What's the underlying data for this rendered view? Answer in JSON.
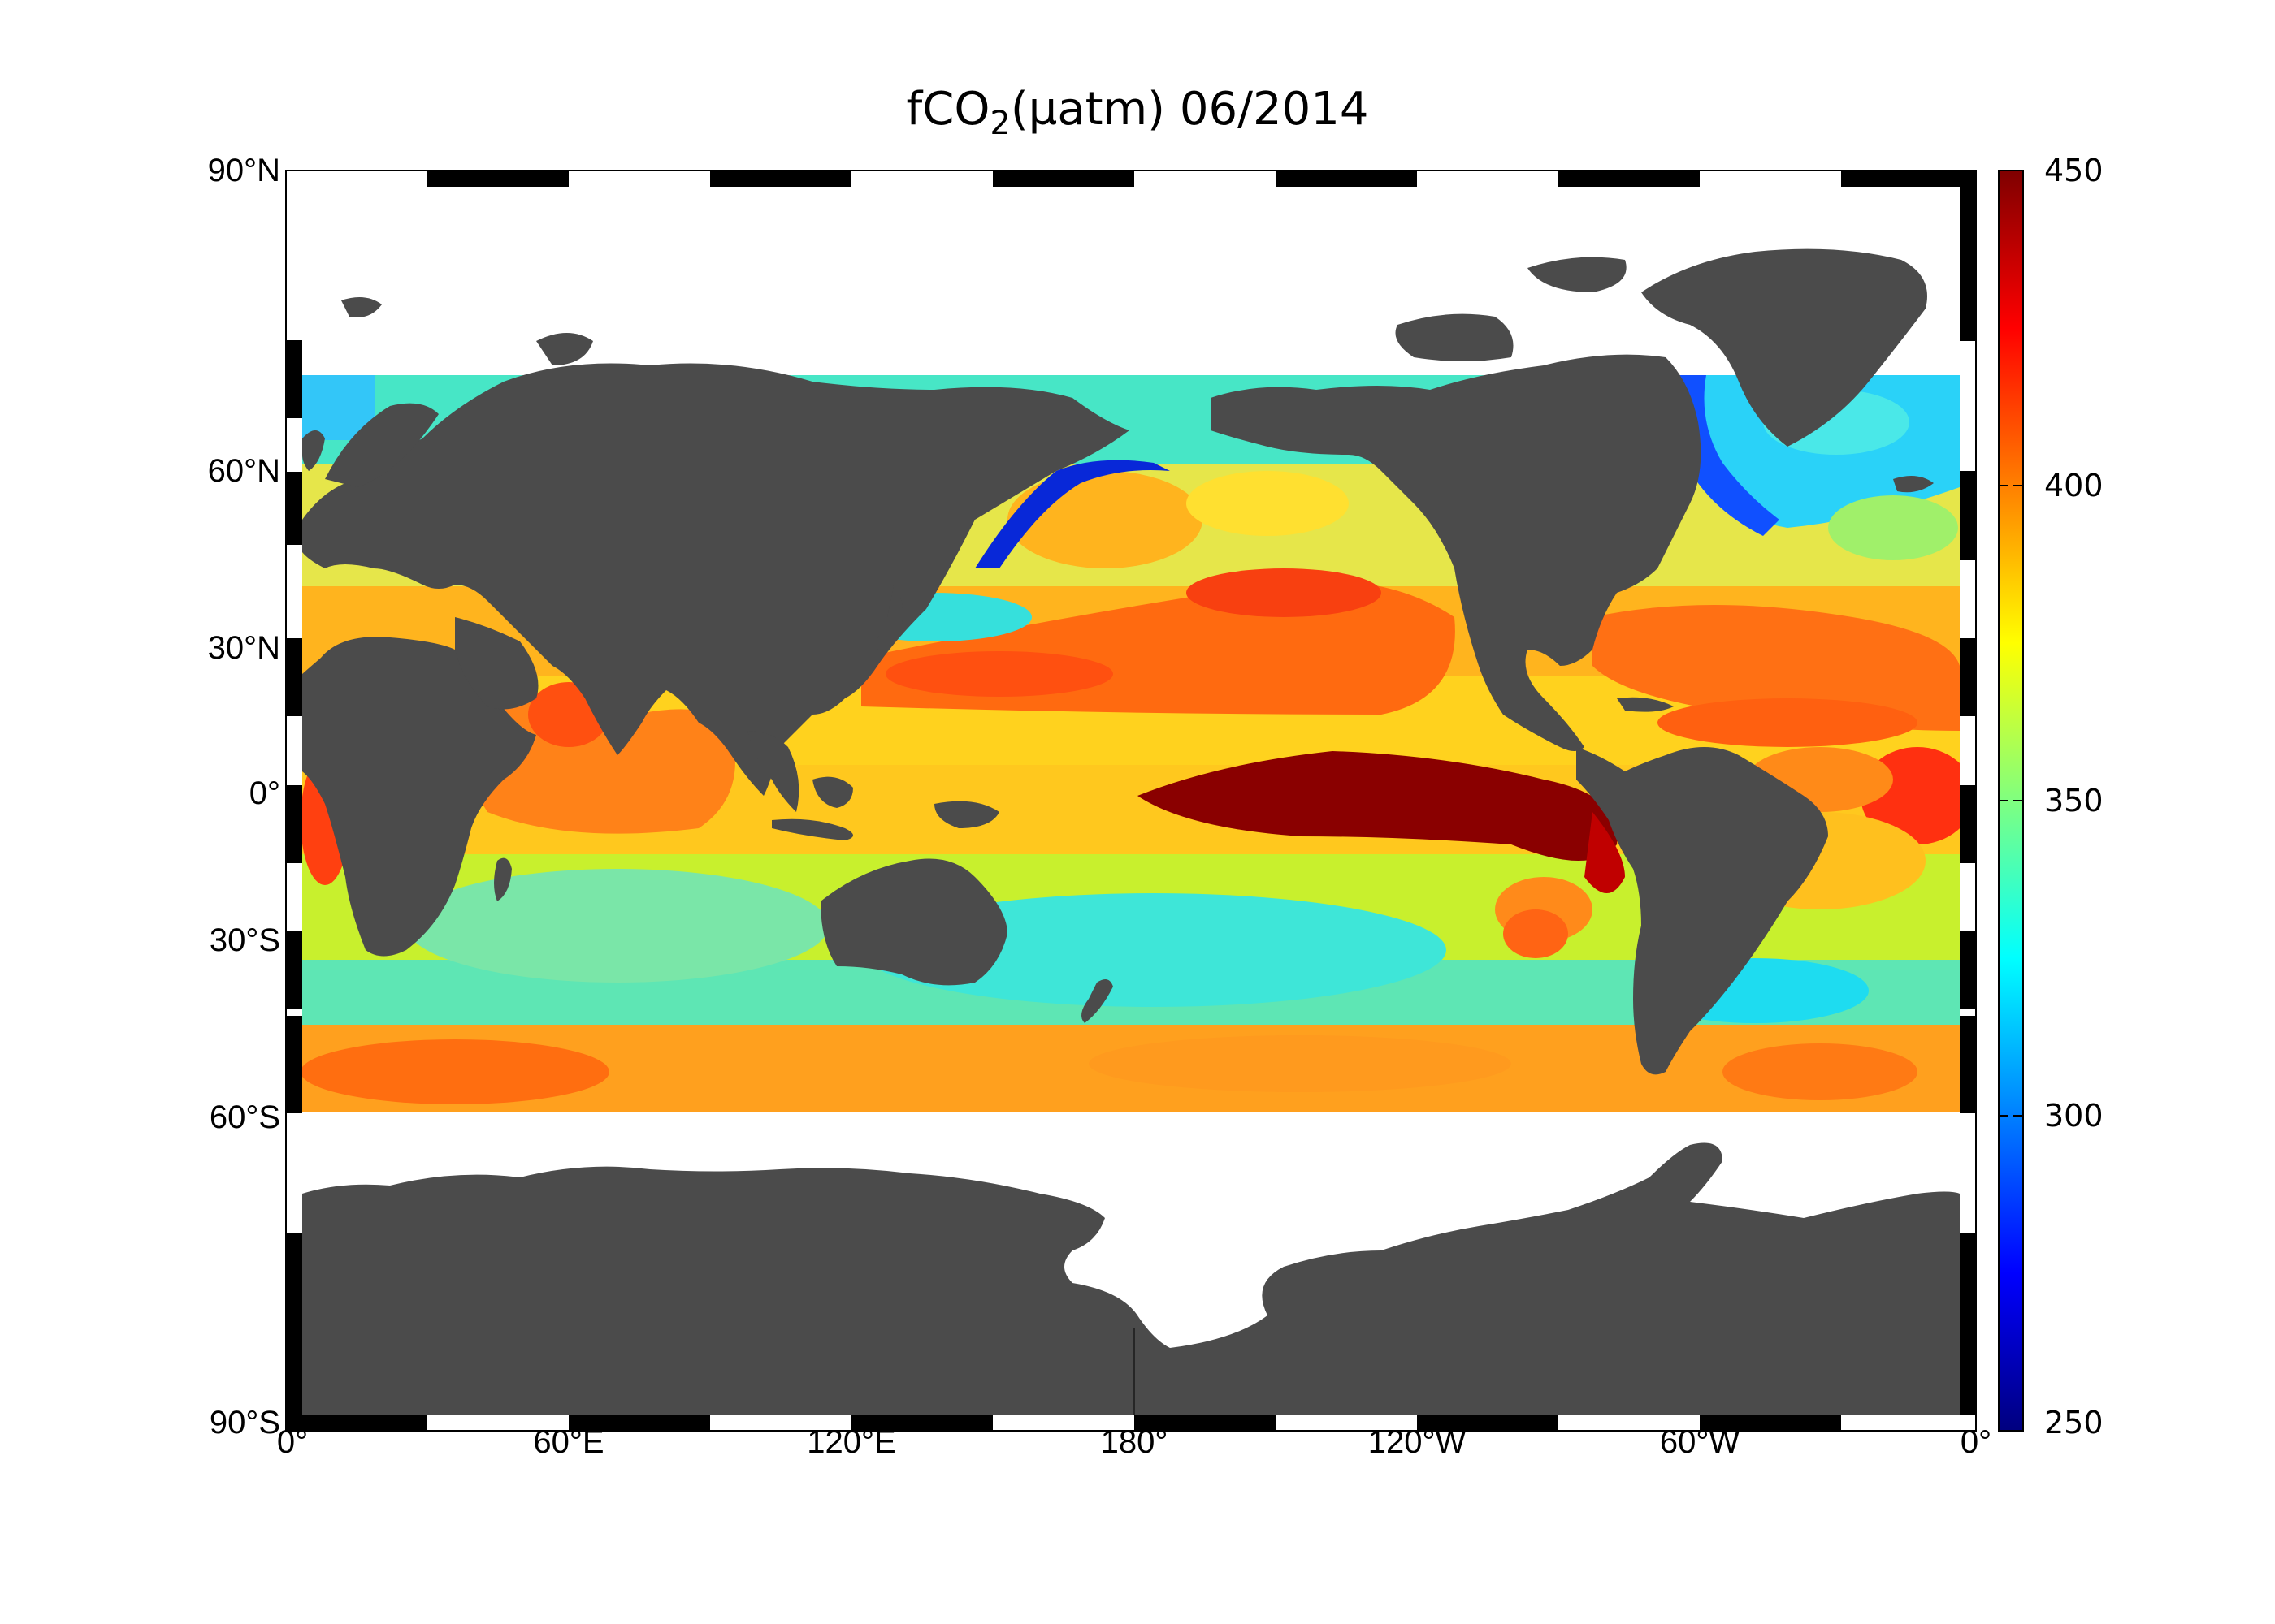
{
  "map": {
    "title_main": "fCO",
    "title_sub": "2",
    "title_rest": "(µatm)  06/2014",
    "lat_labels": [
      "90°N",
      "60°N",
      "30°N",
      "0°",
      "30°S",
      "60°S",
      "90°S"
    ],
    "lon_labels": [
      "0°",
      "60°E",
      "120°E",
      "180°",
      "120°W",
      "60°W",
      "0°"
    ],
    "colorbar": {
      "ticks": [
        "450",
        "400",
        "350",
        "300",
        "250"
      ],
      "min": 250,
      "max": 450,
      "colormap": "jet"
    },
    "colors": {
      "land": "#4b4b4b",
      "no_data": "#ffffff",
      "frame_dark": "#000000"
    }
  }
}
